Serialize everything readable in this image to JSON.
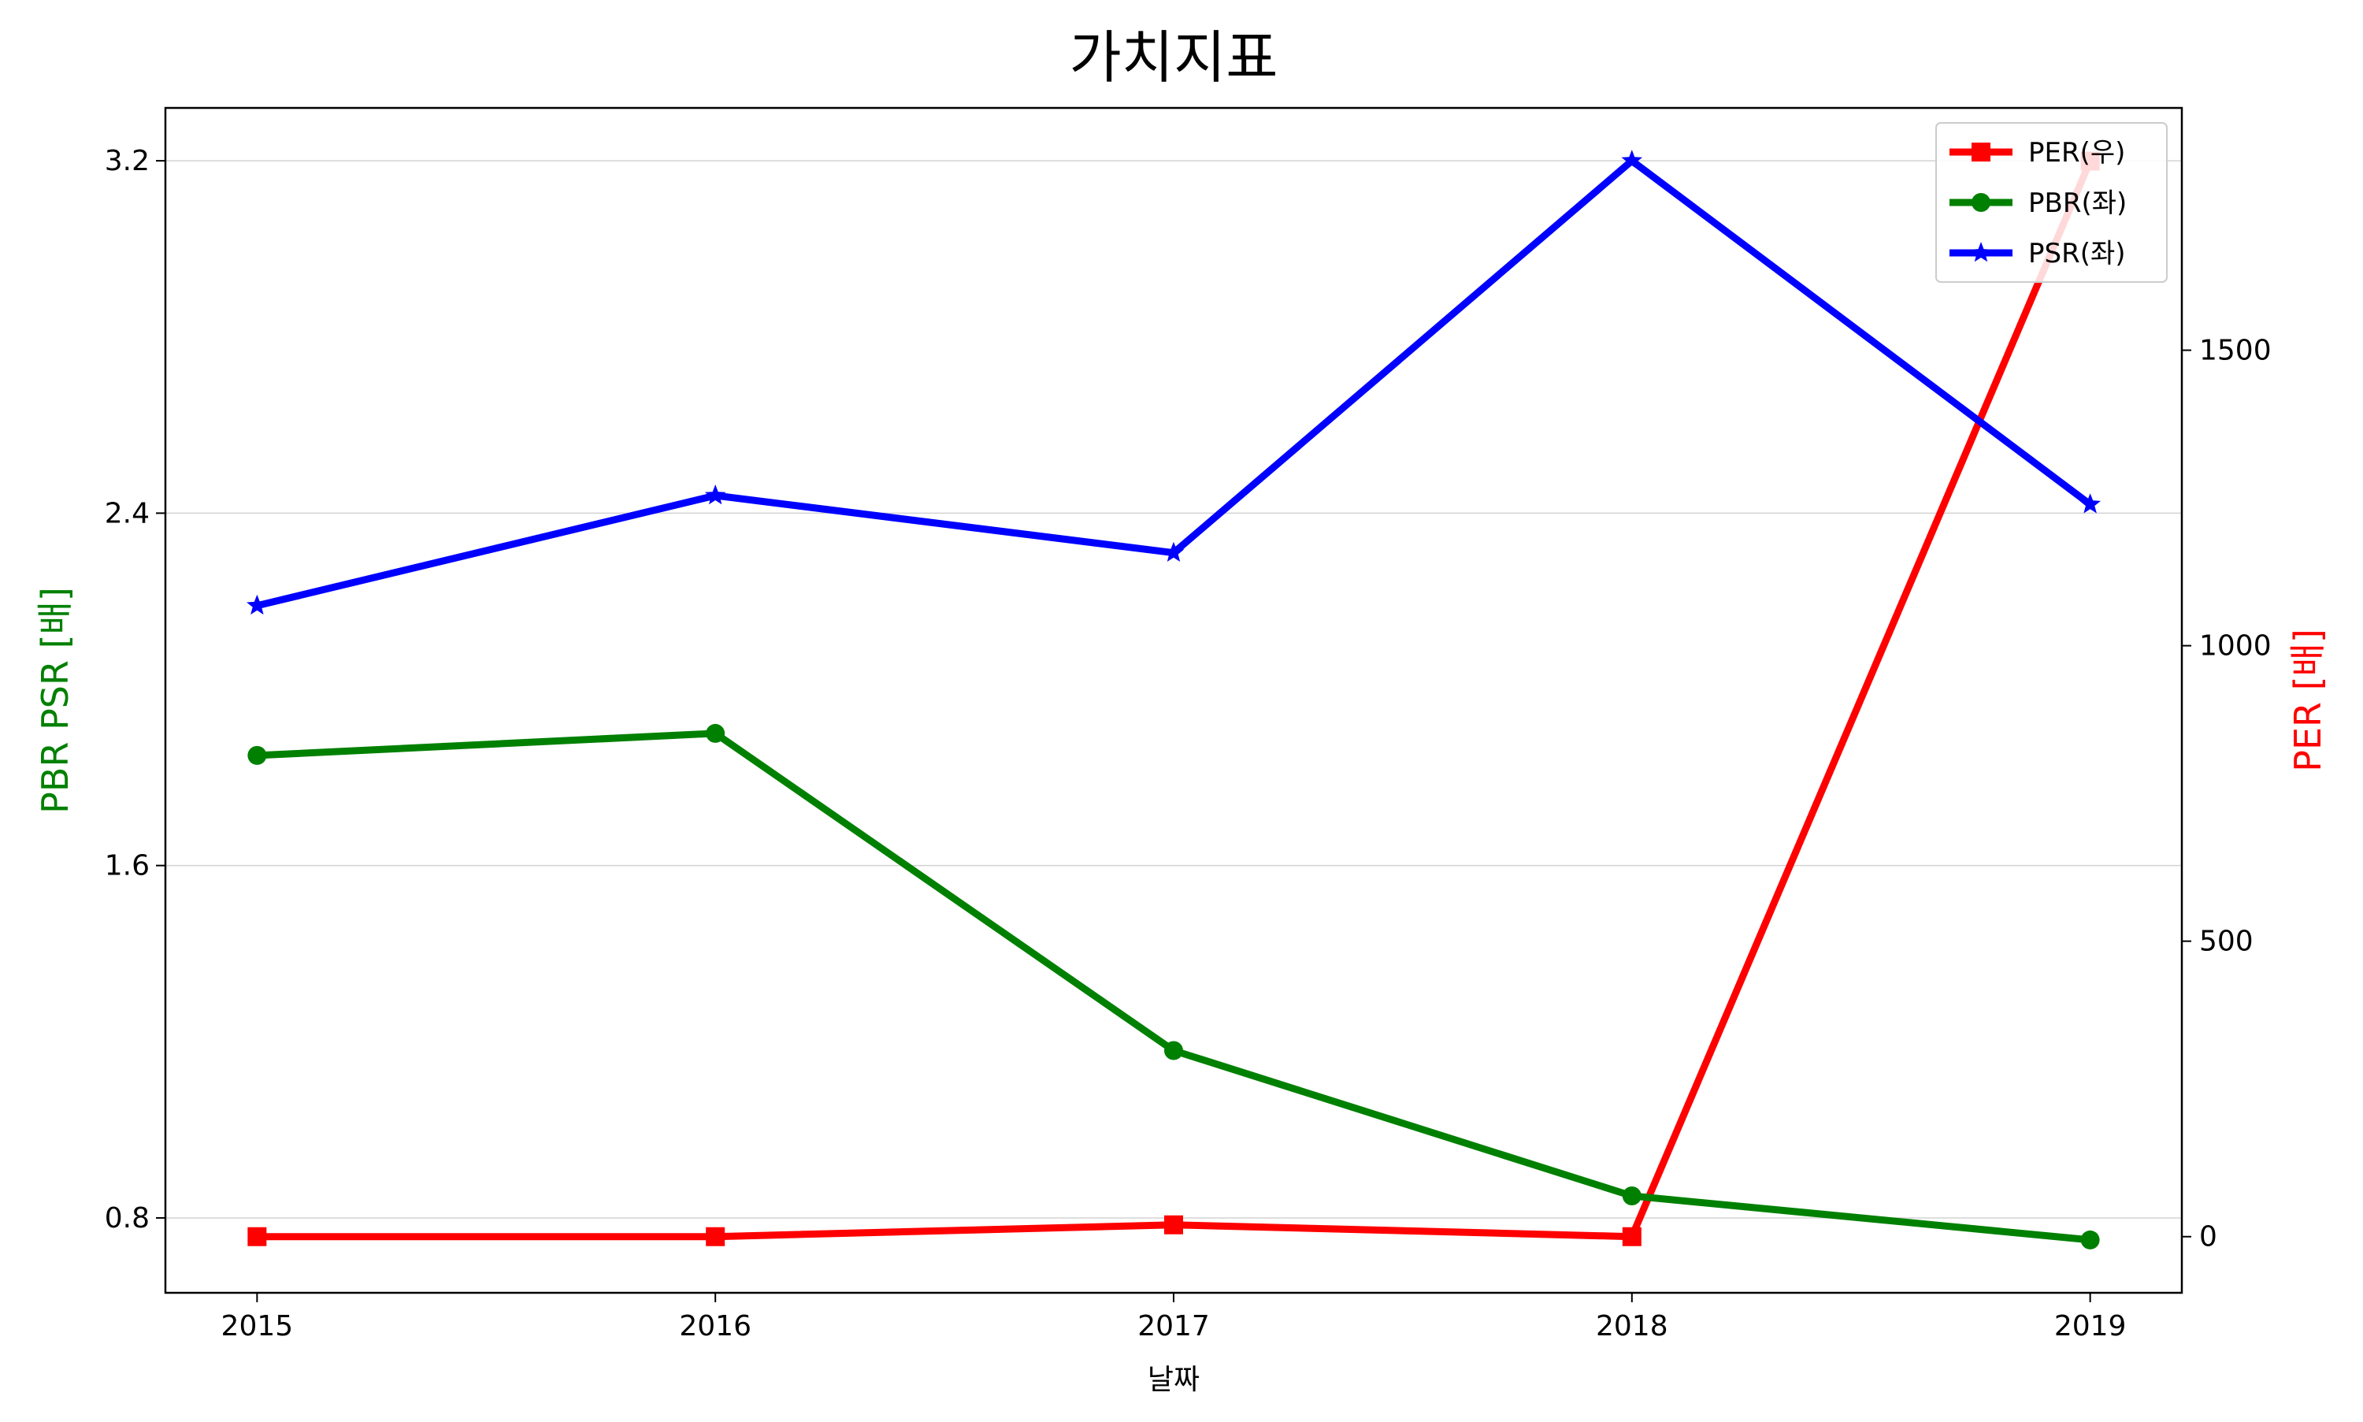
{
  "chart_data": {
    "type": "line",
    "title": "가치지표",
    "xlabel": "날짜",
    "ylabel_left": "PBR PSR [배]",
    "ylabel_right": "PER [배]",
    "ylabel_left_color": "#008000",
    "ylabel_right_color": "#ff0000",
    "categories": [
      "2015",
      "2016",
      "2017",
      "2018",
      "2019"
    ],
    "xlim": [
      -0.2,
      4.2
    ],
    "ylim_left": [
      0.63,
      3.32
    ],
    "ylim_right": [
      -95,
      1910
    ],
    "left_ticks": [
      "0.8",
      "1.6",
      "2.4",
      "3.2"
    ],
    "right_ticks": [
      "0",
      "500",
      "1000",
      "1500"
    ],
    "grid": "horizontal (left axis)",
    "legend_position": "top-right",
    "series": [
      {
        "name": "PER(우)",
        "axis": "right",
        "color": "#ff0000",
        "marker": "square",
        "values": [
          0,
          0,
          20,
          0,
          1820
        ]
      },
      {
        "name": "PBR(좌)",
        "axis": "left",
        "color": "#008000",
        "marker": "circle",
        "values": [
          1.85,
          1.9,
          1.18,
          0.85,
          0.75
        ]
      },
      {
        "name": "PSR(좌)",
        "axis": "left",
        "color": "#0000ff",
        "marker": "star",
        "values": [
          2.19,
          2.44,
          2.31,
          3.2,
          2.42
        ]
      }
    ]
  }
}
